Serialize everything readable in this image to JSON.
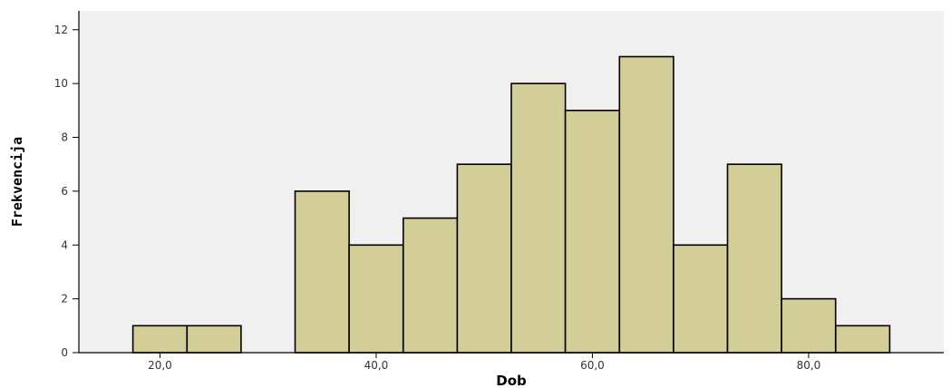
{
  "chart_data": {
    "type": "bar",
    "title": "",
    "xlabel": "Dob",
    "ylabel": "Frekvencija",
    "bin_width": 5,
    "bins": [
      {
        "from": 17.5,
        "to": 22.5,
        "count": 1
      },
      {
        "from": 22.5,
        "to": 27.5,
        "count": 1
      },
      {
        "from": 27.5,
        "to": 32.5,
        "count": 0
      },
      {
        "from": 32.5,
        "to": 37.5,
        "count": 6
      },
      {
        "from": 37.5,
        "to": 42.5,
        "count": 4
      },
      {
        "from": 42.5,
        "to": 47.5,
        "count": 5
      },
      {
        "from": 47.5,
        "to": 52.5,
        "count": 7
      },
      {
        "from": 52.5,
        "to": 57.5,
        "count": 10
      },
      {
        "from": 57.5,
        "to": 62.5,
        "count": 9
      },
      {
        "from": 62.5,
        "to": 67.5,
        "count": 11
      },
      {
        "from": 67.5,
        "to": 72.5,
        "count": 4
      },
      {
        "from": 72.5,
        "to": 77.5,
        "count": 7
      },
      {
        "from": 77.5,
        "to": 82.5,
        "count": 2
      },
      {
        "from": 82.5,
        "to": 87.5,
        "count": 1
      }
    ],
    "xlim": [
      12.5,
      92.5
    ],
    "ylim": [
      0,
      12.7
    ],
    "x_ticks": [
      20,
      40,
      60,
      80
    ],
    "x_tick_labels": [
      "20,0",
      "40,0",
      "60,0",
      "80,0"
    ],
    "y_ticks": [
      0,
      2,
      4,
      6,
      8,
      10,
      12
    ],
    "y_tick_labels": [
      "0",
      "2",
      "4",
      "6",
      "8",
      "10",
      "12"
    ],
    "grid": false,
    "legend": "none",
    "colors": {
      "plot_background": "#f0f0f0",
      "bar_fill": "#d3ce97",
      "bar_stroke": "#000000",
      "axis": "#000000"
    }
  }
}
